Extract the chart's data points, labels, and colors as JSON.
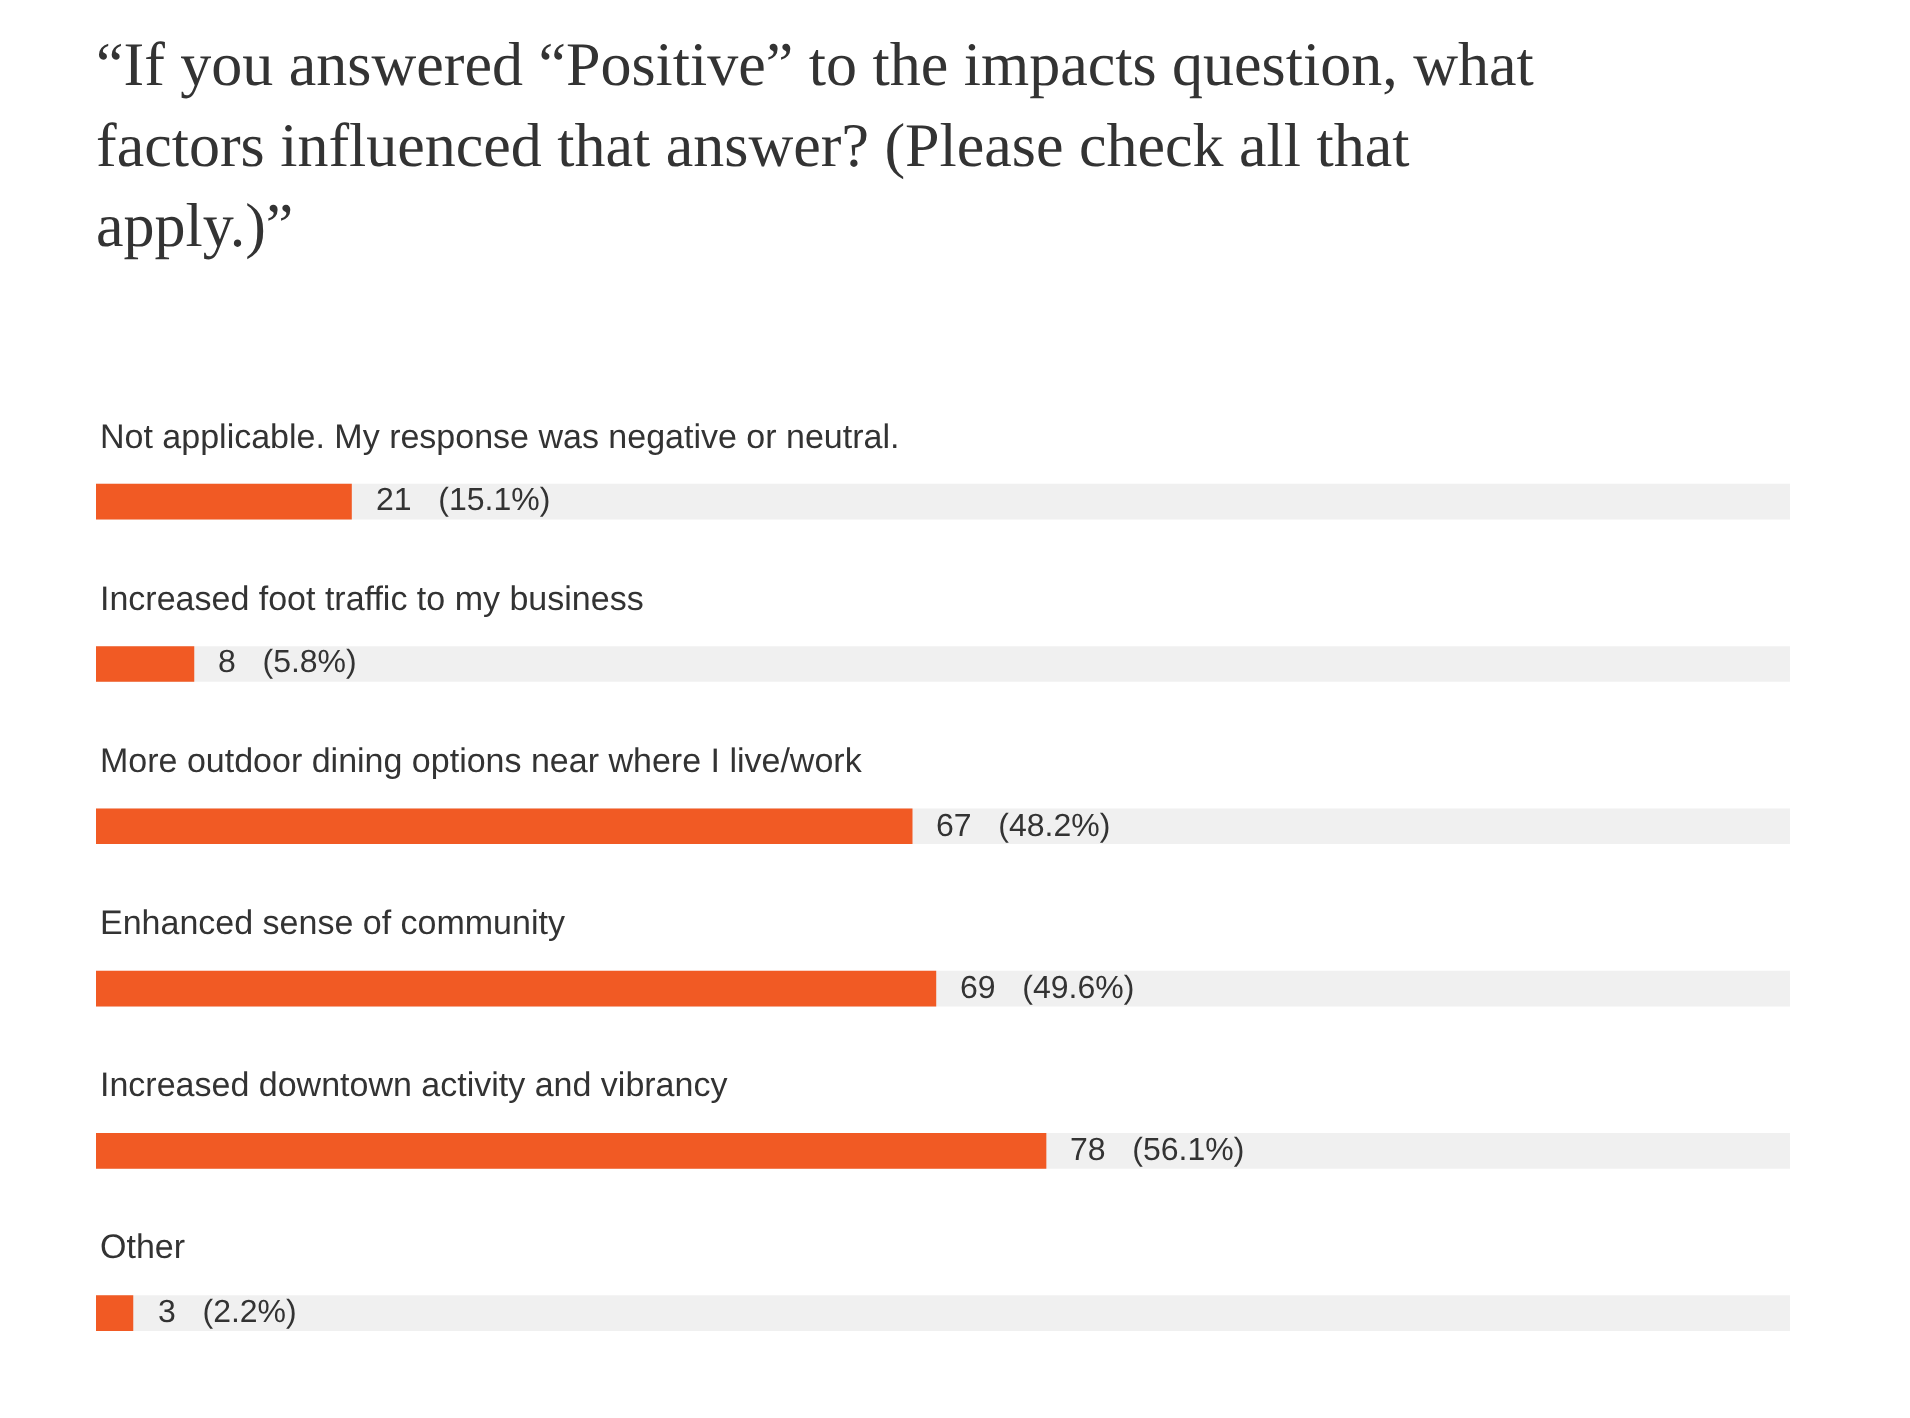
{
  "chart_data": {
    "type": "bar",
    "orientation": "horizontal",
    "title": "“If you answered “Positive” to the impacts question, what factors influenced that answer? (Please check all that apply.)”",
    "categories": [
      "Not applicable. My response was negative or neutral.",
      "Increased foot traffic to my business",
      "More outdoor dining options near where I live/work",
      "Enhanced sense of community",
      "Increased downtown activity and vibrancy",
      "Other"
    ],
    "values": [
      15.1,
      5.8,
      48.2,
      49.6,
      56.1,
      2.2
    ],
    "value_labels": [
      "21  (15.1%)",
      "8  (5.8%)",
      "67  (48.2%)",
      "69  (49.6%)",
      "78  (56.1%)",
      "3  (2.2%)"
    ],
    "color": "#f15a24",
    "xlim": [
      0,
      100
    ],
    "tick_labels": false,
    "grid": false,
    "legend": false
  }
}
